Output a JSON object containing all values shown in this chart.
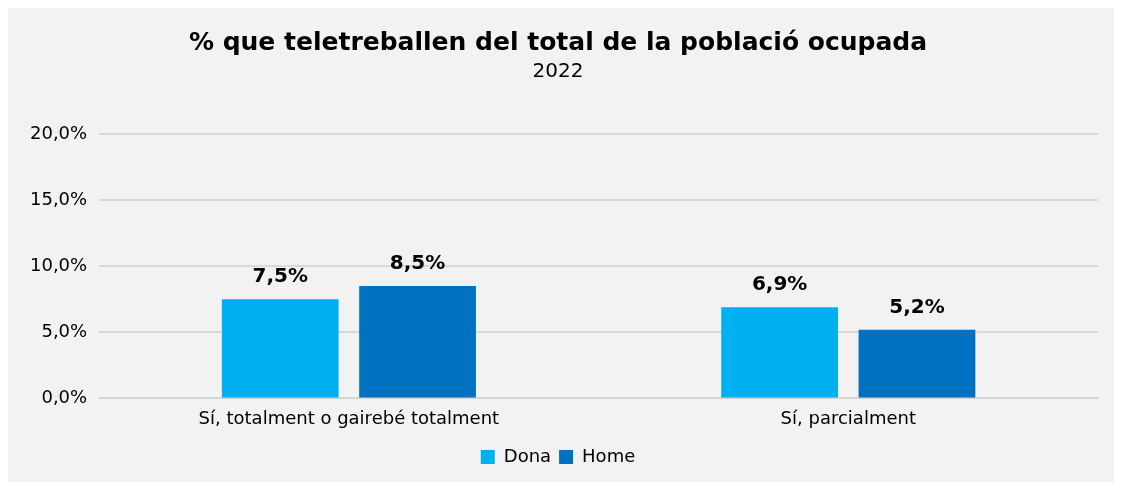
{
  "chart_data": {
    "type": "bar",
    "title": "% que teletreballen del total de la població ocupada",
    "subtitle": "2022",
    "categories": [
      "Sí, totalment o gairebé totalment",
      "Sí, parcialment"
    ],
    "series": [
      {
        "name": "Dona",
        "color": "#00b0f0",
        "values": [
          7.5,
          6.9
        ],
        "value_labels": [
          "7,5%",
          "6,9%"
        ]
      },
      {
        "name": "Home",
        "color": "#0070c0",
        "values": [
          8.5,
          5.2
        ],
        "value_labels": [
          "8,5%",
          "5,2%"
        ]
      }
    ],
    "ylim": [
      0,
      20
    ],
    "yticks": [
      {
        "value": 0,
        "label": "0,0%"
      },
      {
        "value": 5,
        "label": "5,0%"
      },
      {
        "value": 10,
        "label": "10,0%"
      },
      {
        "value": 15,
        "label": "15,0%"
      },
      {
        "value": 20,
        "label": "20,0%"
      }
    ],
    "grid": "y",
    "legend": "bottom"
  }
}
